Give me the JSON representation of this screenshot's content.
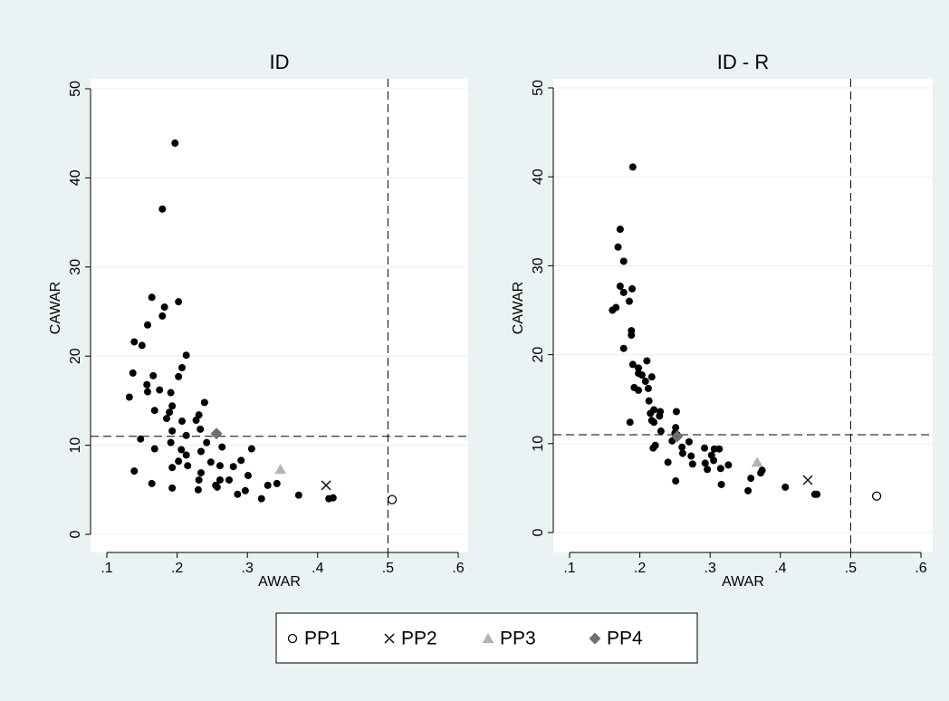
{
  "chart_data": [
    {
      "type": "scatter",
      "title": "ID",
      "xlabel": "AWAR",
      "ylabel": "CAWAR",
      "xlim": [
        0.1,
        0.6
      ],
      "ylim": [
        0,
        50
      ],
      "xticks": [
        {
          "value": 0.1,
          "label": ".1"
        },
        {
          "value": 0.2,
          "label": ".2"
        },
        {
          "value": 0.3,
          "label": ".3"
        },
        {
          "value": 0.4,
          "label": ".4"
        },
        {
          "value": 0.5,
          "label": ".5"
        },
        {
          "value": 0.6,
          "label": ".6"
        }
      ],
      "yticks": [
        0,
        10,
        20,
        30,
        40,
        50
      ],
      "grid": true,
      "xline": 0.5,
      "yline": 11,
      "series": [
        {
          "color": "#000000",
          "marker": "dot",
          "x": [
            0.197,
            0.179,
            0.164,
            0.202,
            0.182,
            0.158,
            0.179,
            0.139,
            0.15,
            0.213,
            0.207,
            0.202,
            0.137,
            0.166,
            0.175,
            0.157,
            0.158,
            0.191,
            0.132,
            0.239,
            0.193,
            0.189,
            0.168,
            0.185,
            0.231,
            0.227,
            0.207,
            0.233,
            0.193,
            0.213,
            0.148,
            0.191,
            0.242,
            0.206,
            0.264,
            0.306,
            0.168,
            0.213,
            0.234,
            0.202,
            0.248,
            0.215,
            0.291,
            0.261,
            0.193,
            0.28,
            0.139,
            0.234,
            0.301,
            0.231,
            0.274,
            0.261,
            0.164,
            0.255,
            0.342,
            0.329,
            0.257,
            0.193,
            0.23,
            0.297,
            0.286,
            0.373,
            0.32,
            0.416,
            0.422
          ],
          "values": [
            43.9,
            36.5,
            26.6,
            26.1,
            25.5,
            23.5,
            24.5,
            21.6,
            21.2,
            20.1,
            18.7,
            17.7,
            18.1,
            17.8,
            16.2,
            16.8,
            16.0,
            15.9,
            15.4,
            14.8,
            14.4,
            13.7,
            13.9,
            13.0,
            13.4,
            12.8,
            12.7,
            11.8,
            11.6,
            11.1,
            10.7,
            10.3,
            10.3,
            9.5,
            9.8,
            9.6,
            9.6,
            8.9,
            9.3,
            8.2,
            8.1,
            7.7,
            8.3,
            7.7,
            7.5,
            7.6,
            7.1,
            6.9,
            6.6,
            6.1,
            6.1,
            6.1,
            5.7,
            5.5,
            5.7,
            5.5,
            5.3,
            5.2,
            5.0,
            4.9,
            4.5,
            4.4,
            4.0,
            4.0,
            4.1
          ]
        }
      ],
      "highlights": [
        {
          "x": 0.506,
          "y": 3.9
        },
        {
          "x": 0.412,
          "y": 5.5
        },
        {
          "x": 0.347,
          "y": 7.3
        },
        {
          "x": 0.256,
          "y": 11.3
        }
      ]
    },
    {
      "type": "scatter",
      "title": "ID - R",
      "xlabel": "AWAR",
      "ylabel": "CAWAR",
      "xlim": [
        0.1,
        0.6
      ],
      "ylim": [
        0,
        50
      ],
      "xticks": [
        {
          "value": 0.1,
          "label": ".1"
        },
        {
          "value": 0.2,
          "label": ".2"
        },
        {
          "value": 0.3,
          "label": ".3"
        },
        {
          "value": 0.4,
          "label": ".4"
        },
        {
          "value": 0.5,
          "label": ".5"
        },
        {
          "value": 0.6,
          "label": ".6"
        }
      ],
      "yticks": [
        0,
        10,
        20,
        30,
        40,
        50
      ],
      "grid": true,
      "xline": 0.5,
      "yline": 11,
      "series": [
        {
          "color": "#000000",
          "marker": "dot",
          "x": [
            0.19,
            0.172,
            0.169,
            0.177,
            0.172,
            0.189,
            0.177,
            0.185,
            0.166,
            0.161,
            0.188,
            0.188,
            0.177,
            0.19,
            0.198,
            0.198,
            0.203,
            0.217,
            0.208,
            0.192,
            0.212,
            0.198,
            0.21,
            0.213,
            0.22,
            0.215,
            0.229,
            0.228,
            0.252,
            0.186,
            0.251,
            0.25,
            0.253,
            0.23,
            0.246,
            0.27,
            0.26,
            0.217,
            0.22,
            0.219,
            0.222,
            0.292,
            0.306,
            0.313,
            0.261,
            0.273,
            0.302,
            0.305,
            0.24,
            0.293,
            0.326,
            0.275,
            0.315,
            0.296,
            0.374,
            0.372,
            0.251,
            0.316,
            0.358,
            0.407,
            0.354,
            0.449,
            0.452
          ],
          "values": [
            41.1,
            34.1,
            32.1,
            30.5,
            27.7,
            27.4,
            27.0,
            26.0,
            25.3,
            25.0,
            22.7,
            22.2,
            20.7,
            18.9,
            18.5,
            17.9,
            17.7,
            17.5,
            17.0,
            16.3,
            16.2,
            16.0,
            19.3,
            14.8,
            13.8,
            13.4,
            13.6,
            13.1,
            13.6,
            12.4,
            11.8,
            11.2,
            11.0,
            11.4,
            10.3,
            10.2,
            9.6,
            12.6,
            12.4,
            9.5,
            9.8,
            9.5,
            9.4,
            9.4,
            8.9,
            8.6,
            8.7,
            8.1,
            7.9,
            7.8,
            7.6,
            7.7,
            7.2,
            7.1,
            7.0,
            6.7,
            5.8,
            5.4,
            6.1,
            5.1,
            4.7,
            4.3,
            4.3
          ]
        }
      ],
      "highlights": [
        {
          "x": 0.537,
          "y": 4.1
        },
        {
          "x": 0.439,
          "y": 5.9
        },
        {
          "x": 0.367,
          "y": 7.9
        },
        {
          "x": 0.253,
          "y": 10.8
        }
      ]
    }
  ],
  "legend": {
    "items": [
      {
        "name": "PP1",
        "marker": "circle-open",
        "color": "#000000"
      },
      {
        "name": "PP2",
        "marker": "x",
        "color": "#000000"
      },
      {
        "name": "PP3",
        "marker": "triangle",
        "color": "#b4b4b4"
      },
      {
        "name": "PP4",
        "marker": "diamond",
        "color": "#6e6e6e"
      }
    ]
  }
}
